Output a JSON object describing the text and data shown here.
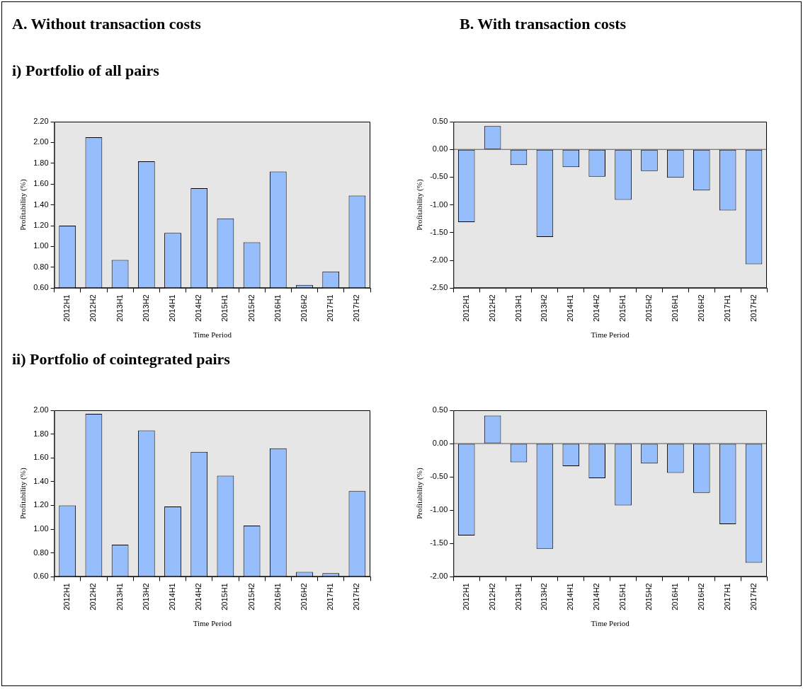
{
  "chart_data": [
    {
      "type": "bar",
      "title": "A. Without transaction costs",
      "subtitle": "i) Portfolio of all pairs",
      "xlabel": "Time Period",
      "ylabel": "Profitability (%)",
      "categories": [
        "2012H1",
        "2012H2",
        "2013H1",
        "2013H2",
        "2014H1",
        "2014H2",
        "2015H1",
        "2015H2",
        "2016H1",
        "2016H2",
        "2017H1",
        "2017H2"
      ],
      "series": [
        {
          "color": "#96bdfc",
          "values": [
            1.2,
            2.05,
            0.87,
            1.82,
            1.13,
            1.56,
            1.27,
            1.04,
            1.72,
            0.63,
            0.76,
            1.49
          ]
        }
      ],
      "ylim": [
        0.6,
        2.2
      ],
      "yticks": [
        {
          "value": 0.6,
          "label": "0.60"
        },
        {
          "value": 0.8,
          "label": "0.80"
        },
        {
          "value": 1.0,
          "label": "1.00"
        },
        {
          "value": 1.2,
          "label": "1.20"
        },
        {
          "value": 1.4,
          "label": "1.40"
        },
        {
          "value": 1.6,
          "label": "1.60"
        },
        {
          "value": 1.8,
          "label": "1.80"
        },
        {
          "value": 2.0,
          "label": "2.00"
        },
        {
          "value": 2.2,
          "label": "2.20"
        }
      ],
      "grid": false,
      "legend": false
    },
    {
      "type": "bar",
      "title": "B. With transaction costs",
      "xlabel": "Time Period",
      "ylabel": "Profitability (%)",
      "categories": [
        "2012H1",
        "2012H2",
        "2013H1",
        "2013H2",
        "2014H1",
        "2014H2",
        "2015H1",
        "2015H2",
        "2016H1",
        "2016H2",
        "2017H1",
        "2017H2"
      ],
      "series": [
        {
          "color": "#96bdfc",
          "values": [
            -1.31,
            0.42,
            -0.28,
            -1.58,
            -0.32,
            -0.49,
            -0.91,
            -0.39,
            -0.51,
            -0.74,
            -1.1,
            -2.07
          ]
        }
      ],
      "ylim": [
        -2.5,
        0.5
      ],
      "yticks": [
        {
          "value": -2.5,
          "label": "-2.50"
        },
        {
          "value": -2.0,
          "label": "-2.00"
        },
        {
          "value": -1.5,
          "label": "-1.50"
        },
        {
          "value": -1.0,
          "label": "-1.00"
        },
        {
          "value": -0.5,
          "label": "-0.50"
        },
        {
          "value": 0,
          "label": "0.00"
        },
        {
          "value": 0.5,
          "label": "0.50"
        }
      ],
      "grid": false,
      "legend": false,
      "ref_lines": [
        {
          "axis": "y",
          "value": 0,
          "color": "#555555"
        }
      ]
    },
    {
      "type": "bar",
      "subtitle": "ii) Portfolio of cointegrated pairs",
      "xlabel": "Time Period",
      "ylabel": "Profitability (%)",
      "categories": [
        "2012H1",
        "2012H2",
        "2013H1",
        "2013H2",
        "2014H1",
        "2014H2",
        "2015H1",
        "2015H2",
        "2016H1",
        "2016H2",
        "2017H1",
        "2017H2"
      ],
      "series": [
        {
          "color": "#96bdfc",
          "values": [
            1.2,
            1.97,
            0.87,
            1.83,
            1.19,
            1.65,
            1.45,
            1.03,
            1.68,
            0.64,
            0.63,
            1.32
          ]
        }
      ],
      "ylim": [
        0.6,
        2.0
      ],
      "yticks": [
        {
          "value": 0.6,
          "label": "0.60"
        },
        {
          "value": 0.8,
          "label": "0.80"
        },
        {
          "value": 1.0,
          "label": "1.00"
        },
        {
          "value": 1.2,
          "label": "1.20"
        },
        {
          "value": 1.4,
          "label": "1.40"
        },
        {
          "value": 1.6,
          "label": "1.60"
        },
        {
          "value": 1.8,
          "label": "1.80"
        },
        {
          "value": 2.0,
          "label": "2.00"
        }
      ],
      "grid": false,
      "legend": false
    },
    {
      "type": "bar",
      "xlabel": "Time Period",
      "ylabel": "Profitability (%)",
      "categories": [
        "2012H1",
        "2012H2",
        "2013H1",
        "2013H2",
        "2014H1",
        "2014H2",
        "2015H1",
        "2015H2",
        "2016H1",
        "2016H2",
        "2017H1",
        "2017H2"
      ],
      "series": [
        {
          "color": "#96bdfc",
          "values": [
            -1.38,
            0.42,
            -0.28,
            -1.58,
            -0.34,
            -0.52,
            -0.93,
            -0.3,
            -0.44,
            -0.74,
            -1.21,
            -1.79
          ]
        }
      ],
      "ylim": [
        -2.0,
        0.5
      ],
      "yticks": [
        {
          "value": -2.0,
          "label": "-2.00"
        },
        {
          "value": -1.5,
          "label": "-1.50"
        },
        {
          "value": -1.0,
          "label": "-1.00"
        },
        {
          "value": -0.5,
          "label": "-0.50"
        },
        {
          "value": 0,
          "label": "0.00"
        },
        {
          "value": 0.5,
          "label": "0.50"
        }
      ],
      "grid": false,
      "legend": false,
      "ref_lines": [
        {
          "axis": "y",
          "value": 0,
          "color": "#555555"
        }
      ]
    }
  ]
}
